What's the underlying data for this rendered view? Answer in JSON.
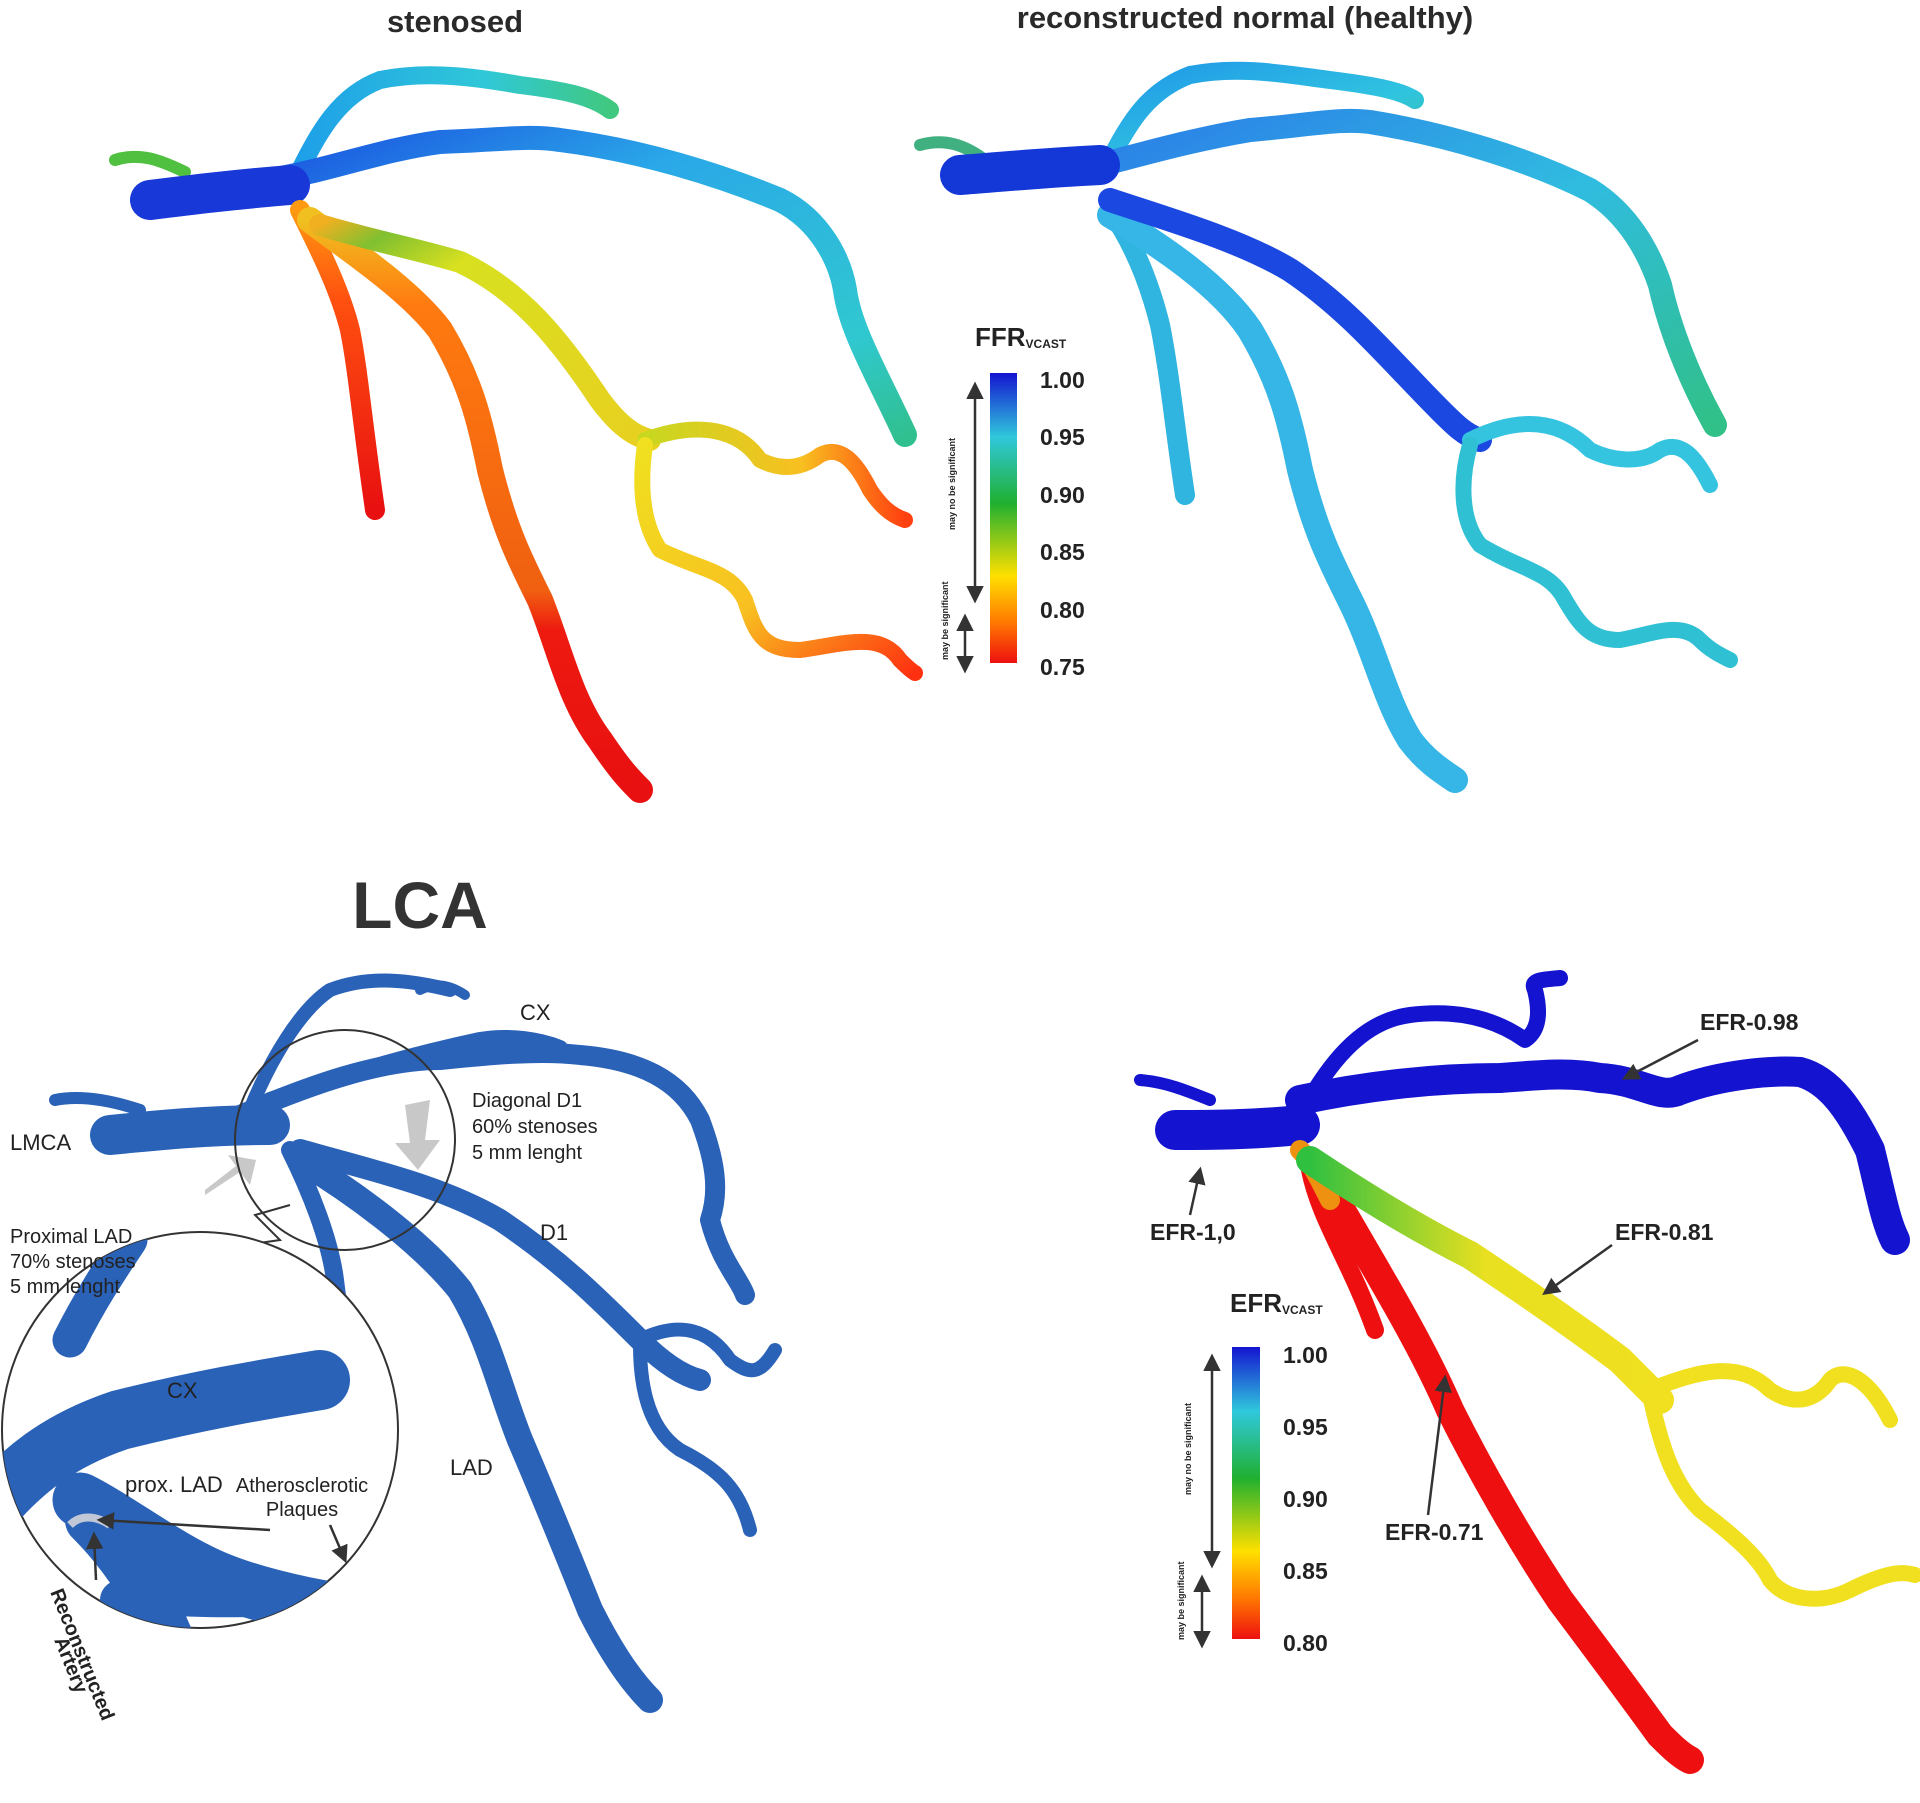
{
  "panels": {
    "top_left": {
      "title": "stenosed"
    },
    "top_right": {
      "title": "reconstructed normal (healthy)"
    },
    "bottom_left": {
      "title": "LCA",
      "labels": {
        "cx": "CX",
        "lmca": "LMCA",
        "d1": "D1",
        "lad": "LAD",
        "diagonal_line1": "Diagonal D1",
        "diagonal_line2": "60% stenoses",
        "diagonal_line3": "5 mm lenght",
        "prox_line1": "Proximal LAD",
        "prox_line2": "70% stenoses",
        "prox_line3": "5 mm lenght",
        "inset_cx": "CX",
        "inset_prox_lad": "prox. LAD",
        "plaques_line1": "Atherosclerotic",
        "plaques_line2": "Plaques",
        "reconstructed_line1": "Reconstructed",
        "reconstructed_line2": "Artery"
      }
    },
    "bottom_right": {
      "annotations": {
        "efr_098": "EFR-0.98",
        "efr_10": "EFR-1,0",
        "efr_081": "EFR-0.81",
        "efr_071": "EFR-0.71"
      }
    }
  },
  "colorbars": {
    "ffr": {
      "title": "FFR",
      "subscript": "VCAST",
      "ticks": [
        "1.00",
        "0.95",
        "0.90",
        "0.85",
        "0.80",
        "0.75"
      ],
      "range": [
        0.75,
        1.0
      ],
      "not_significant": "may no be significant",
      "significant": "may be  significant"
    },
    "efr": {
      "title": "EFR",
      "subscript": "VCAST",
      "ticks": [
        "1.00",
        "0.95",
        "0.90",
        "0.85",
        "0.80"
      ],
      "range": [
        0.8,
        1.0
      ],
      "not_significant": "may no be significant",
      "significant": "may be  significant"
    }
  },
  "colors": {
    "scale_top": "#1414d0",
    "scale_cyan": "#30c8dc",
    "scale_green": "#20b030",
    "scale_yellow": "#ffe000",
    "scale_orange": "#ff7800",
    "scale_bottom": "#ee1010",
    "lca_model": "#2a62b8"
  }
}
